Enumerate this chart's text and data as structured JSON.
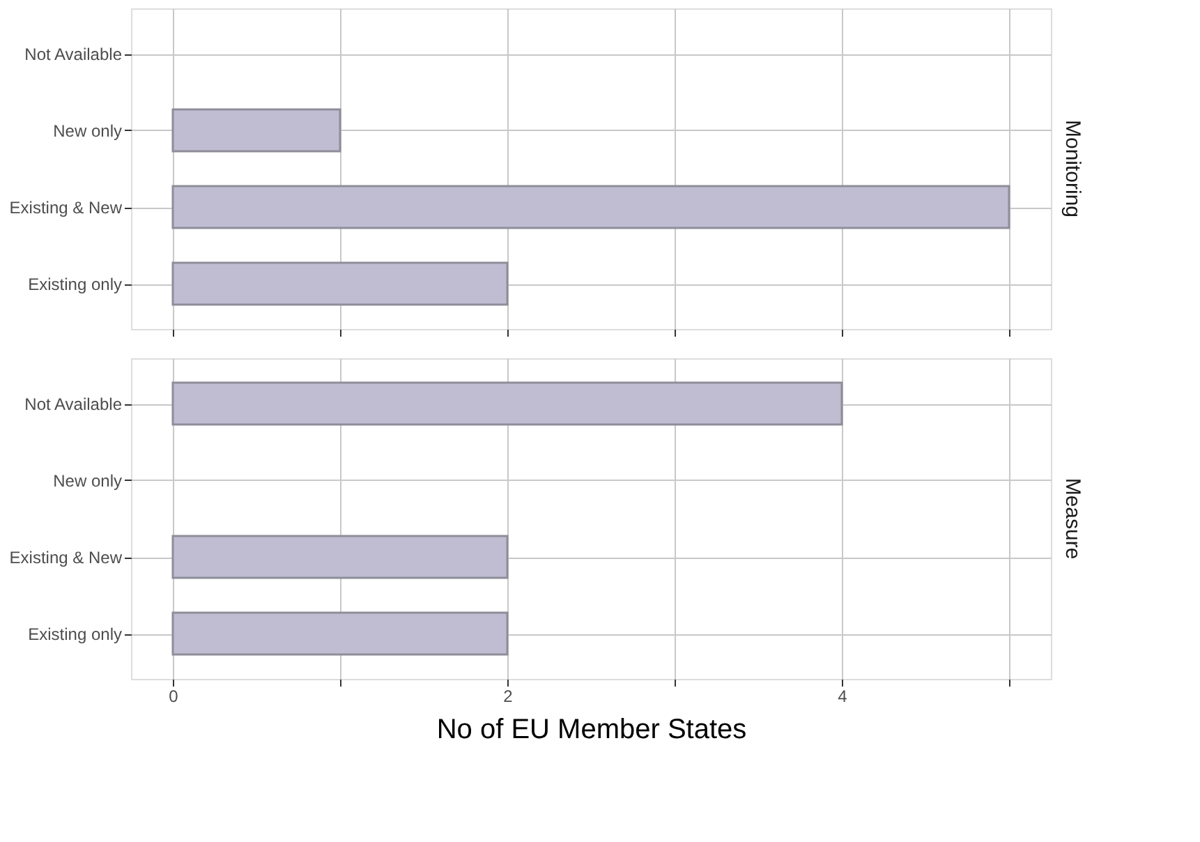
{
  "chart_data": [
    {
      "type": "bar",
      "orientation": "horizontal",
      "title": "Monitoring",
      "categories": [
        "Not Available",
        "New only",
        "Existing & New",
        "Existing only"
      ],
      "values": [
        null,
        1,
        5,
        2
      ],
      "color": "#c0bdd2",
      "xlim": [
        -0.25,
        5.25
      ],
      "xticks": [
        0,
        {
          "value": 1,
          "label": null
        },
        2,
        {
          "value": 3,
          "label": null
        },
        4,
        {
          "value": 5,
          "label": null
        }
      ],
      "grid": true,
      "tick_labels": "y"
    },
    {
      "type": "bar",
      "orientation": "horizontal",
      "title": "Measure",
      "xlabel": "No of EU Member States",
      "categories": [
        "Not Available",
        "New only",
        "Existing & New",
        "Existing only"
      ],
      "values": [
        4,
        null,
        2,
        2
      ],
      "color": "#c0bdd2",
      "xlim": [
        -0.25,
        5.25
      ],
      "xticks": [
        0,
        {
          "value": 1,
          "label": null
        },
        2,
        {
          "value": 3,
          "label": null
        },
        4,
        {
          "value": 5,
          "label": null
        }
      ],
      "grid": true
    }
  ]
}
